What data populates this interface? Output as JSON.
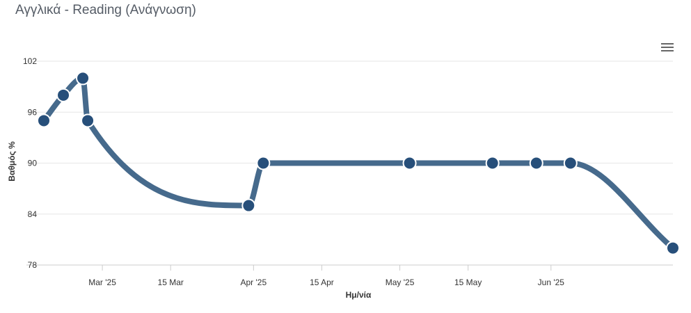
{
  "title": "Αγγλικά - Reading (Ανάγνωση)",
  "menu_icon": "hamburger-menu-icon",
  "chart_data": {
    "type": "line",
    "xlabel": "Ημ/νία",
    "ylabel": "Βαθμός %",
    "ylim": [
      78,
      102
    ],
    "yticks": [
      "78",
      "84",
      "90",
      "96",
      "102"
    ],
    "xticks": [
      {
        "date": "2025-03-01",
        "label": "Mar '25"
      },
      {
        "date": "2025-03-15",
        "label": "15 Mar"
      },
      {
        "date": "2025-04-01",
        "label": "Apr '25"
      },
      {
        "date": "2025-04-15",
        "label": "15 Apr"
      },
      {
        "date": "2025-05-01",
        "label": "May '25"
      },
      {
        "date": "2025-05-15",
        "label": "15 May"
      },
      {
        "date": "2025-06-01",
        "label": "Jun '25"
      }
    ],
    "xlim": [
      "2025-02-17",
      "2025-06-26"
    ],
    "grid": true,
    "line_color": "#466a8c",
    "marker_color": "#274f7a",
    "series": [
      {
        "points": [
          {
            "x": "2025-02-17",
            "y": 95
          },
          {
            "x": "2025-02-21",
            "y": 98
          },
          {
            "x": "2025-02-25",
            "y": 100
          },
          {
            "x": "2025-02-26",
            "y": 95
          },
          {
            "x": "2025-03-31",
            "y": 85
          },
          {
            "x": "2025-04-03",
            "y": 90
          },
          {
            "x": "2025-05-03",
            "y": 90
          },
          {
            "x": "2025-05-20",
            "y": 90
          },
          {
            "x": "2025-05-29",
            "y": 90
          },
          {
            "x": "2025-06-05",
            "y": 90
          },
          {
            "x": "2025-06-26",
            "y": 80
          }
        ]
      }
    ]
  }
}
